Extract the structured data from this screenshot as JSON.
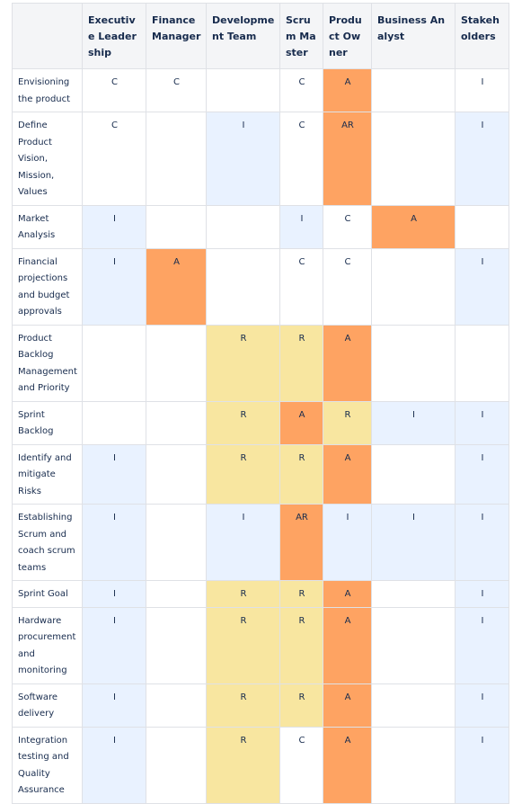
{
  "colors": {
    "header_bg": "#f4f5f7",
    "border": "#dfe1e6",
    "text": "#172b4d",
    "blue": "#e9f2ff",
    "yellow": "#f8e6a0",
    "orange": "#fea362",
    "white": "#ffffff"
  },
  "table": {
    "headers": [
      "",
      "Executive Leadership",
      "Finance Manager",
      "Development Team",
      "Scrum Master",
      "Product Owner",
      "Business Analyst",
      "Stakeholders"
    ],
    "rows": [
      {
        "task": "Envisioning the product",
        "cells": [
          {
            "v": "C",
            "c": "white"
          },
          {
            "v": "C",
            "c": "white"
          },
          {
            "v": "",
            "c": "white"
          },
          {
            "v": "C",
            "c": "white"
          },
          {
            "v": "A",
            "c": "orange"
          },
          {
            "v": "",
            "c": "white"
          },
          {
            "v": "I",
            "c": "white"
          }
        ]
      },
      {
        "task": "Define Product Vision, Mission, Values",
        "cells": [
          {
            "v": "C",
            "c": "white"
          },
          {
            "v": "",
            "c": "white"
          },
          {
            "v": "I",
            "c": "blue"
          },
          {
            "v": "C",
            "c": "white"
          },
          {
            "v": "AR",
            "c": "orange"
          },
          {
            "v": "",
            "c": "white"
          },
          {
            "v": "I",
            "c": "blue"
          }
        ]
      },
      {
        "task": "Market Analysis",
        "cells": [
          {
            "v": "I",
            "c": "blue"
          },
          {
            "v": "",
            "c": "white"
          },
          {
            "v": "",
            "c": "white"
          },
          {
            "v": "I",
            "c": "blue"
          },
          {
            "v": "C",
            "c": "white"
          },
          {
            "v": "A",
            "c": "orange"
          },
          {
            "v": "",
            "c": "white"
          }
        ]
      },
      {
        "task": "Financial projections and budget approvals",
        "cells": [
          {
            "v": "I",
            "c": "blue"
          },
          {
            "v": "A",
            "c": "orange"
          },
          {
            "v": "",
            "c": "white"
          },
          {
            "v": "C",
            "c": "white"
          },
          {
            "v": "C",
            "c": "white"
          },
          {
            "v": "",
            "c": "white"
          },
          {
            "v": "I",
            "c": "blue"
          }
        ]
      },
      {
        "task": "Product Backlog Management and Priority",
        "cells": [
          {
            "v": "",
            "c": "white"
          },
          {
            "v": "",
            "c": "white"
          },
          {
            "v": "R",
            "c": "yellow"
          },
          {
            "v": "R",
            "c": "yellow"
          },
          {
            "v": "A",
            "c": "orange"
          },
          {
            "v": "",
            "c": "white"
          },
          {
            "v": "",
            "c": "white"
          }
        ]
      },
      {
        "task": "Sprint Backlog",
        "cells": [
          {
            "v": "",
            "c": "white"
          },
          {
            "v": "",
            "c": "white"
          },
          {
            "v": "R",
            "c": "yellow"
          },
          {
            "v": "A",
            "c": "orange"
          },
          {
            "v": "R",
            "c": "yellow"
          },
          {
            "v": "I",
            "c": "blue"
          },
          {
            "v": "I",
            "c": "blue"
          }
        ]
      },
      {
        "task": "Identify and mitigate Risks",
        "cells": [
          {
            "v": "I",
            "c": "blue"
          },
          {
            "v": "",
            "c": "white"
          },
          {
            "v": "R",
            "c": "yellow"
          },
          {
            "v": "R",
            "c": "yellow"
          },
          {
            "v": "A",
            "c": "orange"
          },
          {
            "v": "",
            "c": "white"
          },
          {
            "v": "I",
            "c": "blue"
          }
        ]
      },
      {
        "task": "Establishing Scrum and coach scrum teams",
        "cells": [
          {
            "v": "I",
            "c": "blue"
          },
          {
            "v": "",
            "c": "white"
          },
          {
            "v": "I",
            "c": "blue"
          },
          {
            "v": "AR",
            "c": "orange"
          },
          {
            "v": "I",
            "c": "blue"
          },
          {
            "v": "I",
            "c": "blue"
          },
          {
            "v": "I",
            "c": "blue"
          }
        ]
      },
      {
        "task": "Sprint Goal",
        "cells": [
          {
            "v": "I",
            "c": "blue"
          },
          {
            "v": "",
            "c": "white"
          },
          {
            "v": "R",
            "c": "yellow"
          },
          {
            "v": "R",
            "c": "yellow"
          },
          {
            "v": "A",
            "c": "orange"
          },
          {
            "v": "",
            "c": "white"
          },
          {
            "v": "I",
            "c": "blue"
          }
        ]
      },
      {
        "task": "Hardware procurement and monitoring",
        "cells": [
          {
            "v": "I",
            "c": "blue"
          },
          {
            "v": "",
            "c": "white"
          },
          {
            "v": "R",
            "c": "yellow"
          },
          {
            "v": "R",
            "c": "yellow"
          },
          {
            "v": "A",
            "c": "orange"
          },
          {
            "v": "",
            "c": "white"
          },
          {
            "v": "I",
            "c": "blue"
          }
        ]
      },
      {
        "task": "Software delivery",
        "cells": [
          {
            "v": "I",
            "c": "blue"
          },
          {
            "v": "",
            "c": "white"
          },
          {
            "v": "R",
            "c": "yellow"
          },
          {
            "v": "R",
            "c": "yellow"
          },
          {
            "v": "A",
            "c": "orange"
          },
          {
            "v": "",
            "c": "white"
          },
          {
            "v": "I",
            "c": "blue"
          }
        ]
      },
      {
        "task": "Integration testing and Quality Assurance",
        "cells": [
          {
            "v": "I",
            "c": "blue"
          },
          {
            "v": "",
            "c": "white"
          },
          {
            "v": "R",
            "c": "yellow"
          },
          {
            "v": "C",
            "c": "white"
          },
          {
            "v": "A",
            "c": "orange"
          },
          {
            "v": "",
            "c": "white"
          },
          {
            "v": "I",
            "c": "blue"
          }
        ]
      }
    ]
  }
}
